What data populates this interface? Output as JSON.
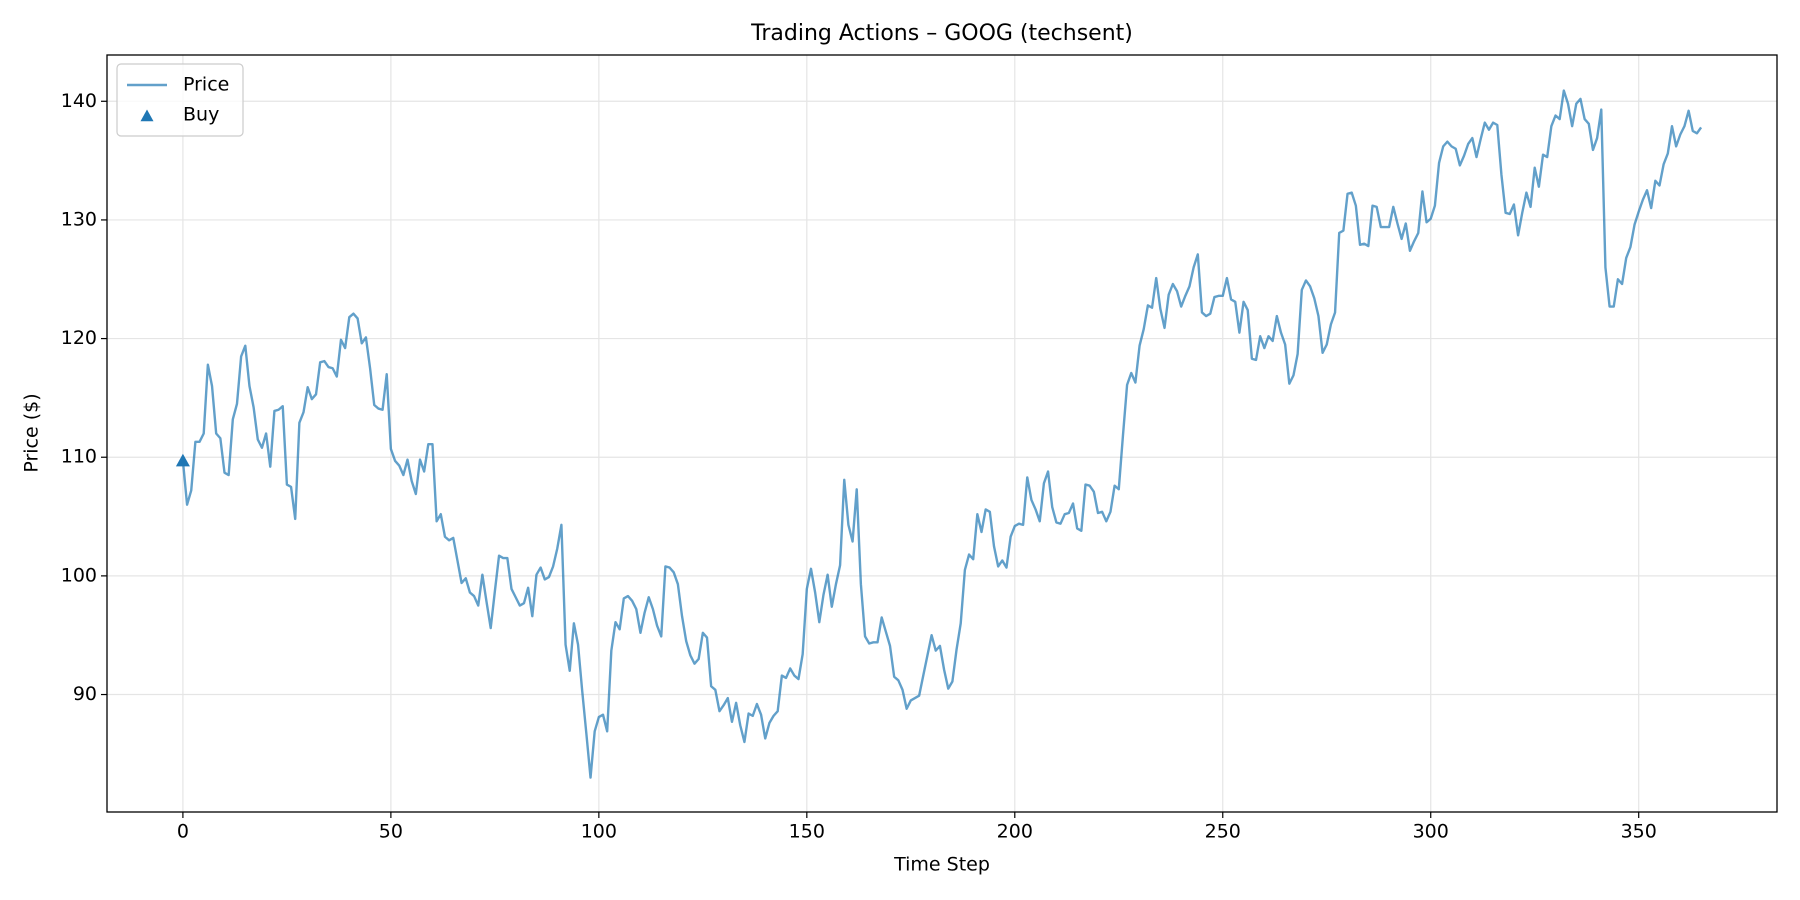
{
  "chart_data": {
    "type": "line",
    "title": "Trading Actions – GOOG (techsent)",
    "xlabel": "Time Step",
    "ylabel": "Price ($)",
    "x": [
      0,
      1,
      2,
      3,
      4,
      5,
      6,
      7,
      8,
      9,
      10,
      11,
      12,
      13,
      14,
      15,
      16,
      17,
      18,
      19,
      20,
      21,
      22,
      23,
      24,
      25,
      26,
      27,
      28,
      29,
      30,
      31,
      32,
      33,
      34,
      35,
      36,
      37,
      38,
      39,
      40,
      41,
      42,
      43,
      44,
      45,
      46,
      47,
      48,
      49,
      50,
      51,
      52,
      53,
      54,
      55,
      56,
      57,
      58,
      59,
      60,
      61,
      62,
      63,
      64,
      65,
      66,
      67,
      68,
      69,
      70,
      71,
      72,
      73,
      74,
      75,
      76,
      77,
      78,
      79,
      80,
      81,
      82,
      83,
      84,
      85,
      86,
      87,
      88,
      89,
      90,
      91,
      92,
      93,
      94,
      95,
      96,
      97,
      98,
      99,
      100,
      101,
      102,
      103,
      104,
      105,
      106,
      107,
      108,
      109,
      110,
      111,
      112,
      113,
      114,
      115,
      116,
      117,
      118,
      119,
      120,
      121,
      122,
      123,
      124,
      125,
      126,
      127,
      128,
      129,
      130,
      131,
      132,
      133,
      134,
      135,
      136,
      137,
      138,
      139,
      140,
      141,
      142,
      143,
      144,
      145,
      146,
      147,
      148,
      149,
      150,
      151,
      152,
      153,
      154,
      155,
      156,
      157,
      158,
      159,
      160,
      161,
      162,
      163,
      164,
      165,
      166,
      167,
      168,
      169,
      170,
      171,
      172,
      173,
      174,
      175,
      176,
      177,
      178,
      179,
      180,
      181,
      182,
      183,
      184,
      185,
      186,
      187,
      188,
      189,
      190,
      191,
      192,
      193,
      194,
      195,
      196,
      197,
      198,
      199,
      200,
      201,
      202,
      203,
      204,
      205,
      206,
      207,
      208,
      209,
      210,
      211,
      212,
      213,
      214,
      215,
      216,
      217,
      218,
      219,
      220,
      221,
      222,
      223,
      224,
      225,
      226,
      227,
      228,
      229,
      230,
      231,
      232,
      233,
      234,
      235,
      236,
      237,
      238,
      239,
      240,
      241,
      242,
      243,
      244,
      245,
      246,
      247,
      248,
      249,
      250,
      251,
      252,
      253,
      254,
      255,
      256,
      257,
      258,
      259,
      260,
      261,
      262,
      263,
      264,
      265,
      266,
      267,
      268,
      269,
      270,
      271,
      272,
      273,
      274,
      275,
      276,
      277,
      278,
      279,
      280,
      281,
      282,
      283,
      284,
      285,
      286,
      287,
      288,
      289,
      290,
      291,
      292,
      293,
      294,
      295,
      296,
      297,
      298,
      299,
      300,
      301,
      302,
      303,
      304,
      305,
      306,
      307,
      308,
      309,
      310,
      311,
      312,
      313,
      314,
      315,
      316,
      317,
      318,
      319,
      320,
      321,
      322,
      323,
      324,
      325,
      326,
      327,
      328,
      329,
      330,
      331,
      332,
      333,
      334,
      335,
      336,
      337,
      338,
      339,
      340,
      341,
      342,
      343,
      344,
      345,
      346,
      347,
      348,
      349,
      350,
      351,
      352,
      353,
      354,
      355,
      356,
      357,
      358,
      359,
      360,
      361,
      362,
      363,
      364,
      365
    ],
    "series": [
      {
        "name": "Price",
        "type": "line",
        "color": "#1f77b4",
        "values": [
          109.7,
          106,
          107.2,
          111.3,
          111.3,
          112,
          117.8,
          116,
          112,
          111.6,
          108.7,
          108.5,
          113.2,
          114.5,
          118.5,
          119.4,
          116,
          114.2,
          111.5,
          110.8,
          112,
          109.2,
          113.9,
          114,
          114.3,
          107.7,
          107.5,
          104.8,
          112.9,
          113.8,
          115.9,
          114.9,
          115.3,
          118,
          118.1,
          117.6,
          117.5,
          116.8,
          119.9,
          119.2,
          121.8,
          122.1,
          121.7,
          119.6,
          120.1,
          117.5,
          114.4,
          114.1,
          114,
          117,
          110.7,
          109.7,
          109.3,
          108.5,
          109.8,
          108,
          106.9,
          109.8,
          108.8,
          111.1,
          111.1,
          104.6,
          105.2,
          103.3,
          103,
          103.2,
          101.3,
          99.4,
          99.8,
          98.6,
          98.3,
          97.5,
          100.1,
          97.8,
          95.6,
          98.7,
          101.7,
          101.5,
          101.5,
          98.9,
          98.2,
          97.5,
          97.7,
          99,
          96.6,
          100.1,
          100.7,
          99.7,
          99.9,
          100.8,
          102.3,
          104.3,
          94.2,
          92,
          96,
          94.2,
          90.3,
          86.7,
          83,
          86.9,
          88.1,
          88.3,
          86.9,
          93.7,
          96.1,
          95.5,
          98.1,
          98.3,
          97.9,
          97.2,
          95.2,
          96.9,
          98.2,
          97.2,
          95.8,
          94.9,
          100.8,
          100.7,
          100.3,
          99.3,
          96.6,
          94.5,
          93.3,
          92.6,
          93,
          95.2,
          94.8,
          90.7,
          90.4,
          88.6,
          89.1,
          89.7,
          87.7,
          89.3,
          87.4,
          86,
          88.4,
          88.2,
          89.2,
          88.3,
          86.3,
          87.6,
          88.2,
          88.6,
          91.6,
          91.4,
          92.2,
          91.6,
          91.3,
          93.4,
          98.9,
          100.6,
          98.6,
          96.1,
          98.4,
          100.1,
          97.4,
          99.3,
          100.9,
          108.1,
          104.3,
          102.9,
          107.3,
          99.3,
          94.9,
          94.3,
          94.4,
          94.4,
          96.5,
          95.3,
          94.1,
          91.5,
          91.2,
          90.4,
          88.8,
          89.5,
          89.7,
          89.9,
          91.6,
          93.3,
          95,
          93.7,
          94.1,
          92.1,
          90.5,
          91.1,
          93.8,
          96,
          100.5,
          101.8,
          101.4,
          105.2,
          103.7,
          105.6,
          105.4,
          102.5,
          100.8,
          101.3,
          100.7,
          103.3,
          104.2,
          104.4,
          104.3,
          108.3,
          106.4,
          105.6,
          104.6,
          107.8,
          108.8,
          105.8,
          104.5,
          104.4,
          105.2,
          105.3,
          106.1,
          104,
          103.8,
          107.7,
          107.6,
          107.1,
          105.3,
          105.4,
          104.6,
          105.4,
          107.6,
          107.3,
          111.8,
          116.1,
          117.1,
          116.3,
          119.4,
          120.8,
          122.8,
          122.6,
          125.1,
          122.5,
          120.9,
          123.7,
          124.6,
          124,
          122.7,
          123.6,
          124.4,
          126,
          127.1,
          122.2,
          121.9,
          122.1,
          123.5,
          123.6,
          123.6,
          125.1,
          123.3,
          123.1,
          120.5,
          123.1,
          122.4,
          118.3,
          118.2,
          120.2,
          119.2,
          120.2,
          119.8,
          121.9,
          120.5,
          119.5,
          116.2,
          116.9,
          118.7,
          124.1,
          124.9,
          124.4,
          123.4,
          121.9,
          118.8,
          119.5,
          121.2,
          122.2,
          128.9,
          129.1,
          132.2,
          132.3,
          131.2,
          127.9,
          128,
          127.8,
          131.2,
          131.1,
          129.4,
          129.4,
          129.4,
          131.1,
          129.7,
          128.4,
          129.7,
          127.4,
          128.2,
          128.9,
          132.4,
          129.8,
          130.1,
          131.2,
          134.8,
          136.2,
          136.6,
          136.2,
          136,
          134.6,
          135.4,
          136.4,
          136.9,
          135.3,
          136.8,
          138.2,
          137.6,
          138.2,
          138,
          133.8,
          130.6,
          130.5,
          131.3,
          128.7,
          130.6,
          132.3,
          131.1,
          134.4,
          132.8,
          135.5,
          135.3,
          137.9,
          138.8,
          138.5,
          140.9,
          139.8,
          137.9,
          139.8,
          140.2,
          138.5,
          138.1,
          135.9,
          136.9,
          139.3,
          126,
          122.7,
          122.7,
          125,
          124.6,
          126.8,
          127.7,
          129.6,
          130.7,
          131.7,
          132.5,
          131,
          133.3,
          132.9,
          134.7,
          135.6,
          137.9,
          136.2,
          137.2,
          137.9,
          139.2,
          137.5,
          137.3,
          137.8
        ]
      },
      {
        "name": "Buy",
        "type": "scatter",
        "marker": "triangle",
        "color": "#1f77b4",
        "x": [
          0
        ],
        "values": [
          109.7
        ]
      }
    ],
    "xlim": [
      -18.25,
      383.25
    ],
    "ylim": [
      80.1,
      143.9
    ],
    "xticks": [
      0,
      50,
      100,
      150,
      200,
      250,
      300,
      350
    ],
    "yticks": [
      90,
      100,
      110,
      120,
      130,
      140
    ],
    "grid": true,
    "legend": "upper left"
  }
}
